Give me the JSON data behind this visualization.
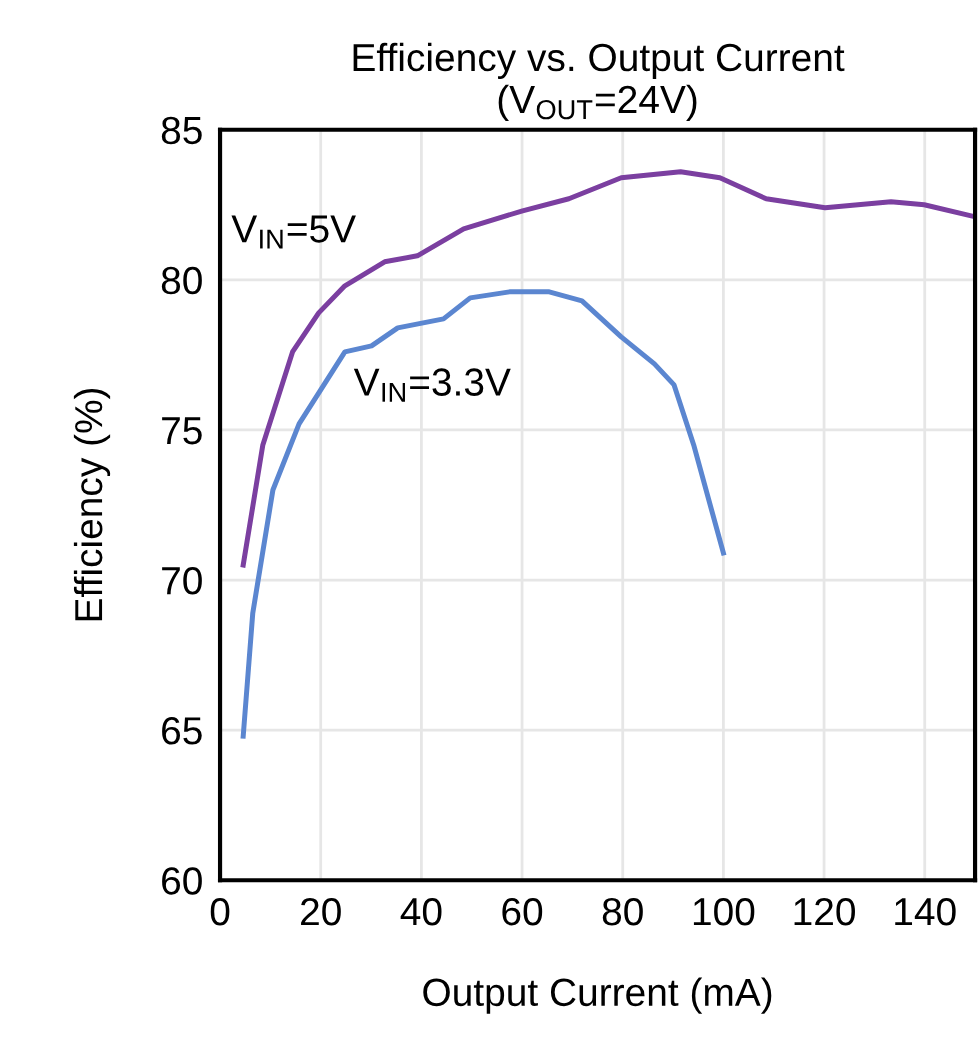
{
  "chart_data": {
    "type": "line",
    "title": "Efficiency vs. Output Current\n(V$_{OUT}$=24V)",
    "xlabel": "Output Current (mA)",
    "ylabel": "Efficiency (%)",
    "xlim": [
      0,
      150
    ],
    "xticks": [
      0,
      20,
      40,
      60,
      80,
      100,
      120,
      140
    ],
    "ylim": [
      60,
      85
    ],
    "yticks": [
      60,
      65,
      70,
      75,
      80,
      85
    ],
    "grid": true,
    "line_style": "solid",
    "series": [
      {
        "name": "V$_{IN}$=5V",
        "color": "#7b3fa0",
        "x": [
          4.6,
          8.5,
          14.4,
          19.6,
          24.8,
          32.7,
          39.2,
          48.4,
          60.1,
          69.3,
          79.7,
          91.5,
          99.3,
          108.5,
          120.2,
          133.3,
          139.9,
          150
        ],
        "values": [
          70.5,
          74.5,
          77.6,
          78.9,
          79.8,
          80.6,
          80.8,
          81.7,
          82.3,
          82.7,
          83.4,
          83.6,
          83.4,
          82.7,
          82.4,
          82.6,
          82.5,
          82.1
        ]
      },
      {
        "name": "V$_{IN}$=3.3V",
        "color": "#5b86d0",
        "x": [
          4.6,
          6.5,
          10.5,
          15.7,
          24.8,
          30.1,
          35.3,
          44.4,
          49.7,
          57.5,
          65.4,
          71.9,
          79.7,
          86.3,
          90.2,
          94.1,
          100
        ],
        "values": [
          64.8,
          68.9,
          73.0,
          75.2,
          77.6,
          77.8,
          78.4,
          78.7,
          79.4,
          79.6,
          79.6,
          79.3,
          78.1,
          77.2,
          76.5,
          74.5,
          70.9
        ]
      }
    ]
  }
}
